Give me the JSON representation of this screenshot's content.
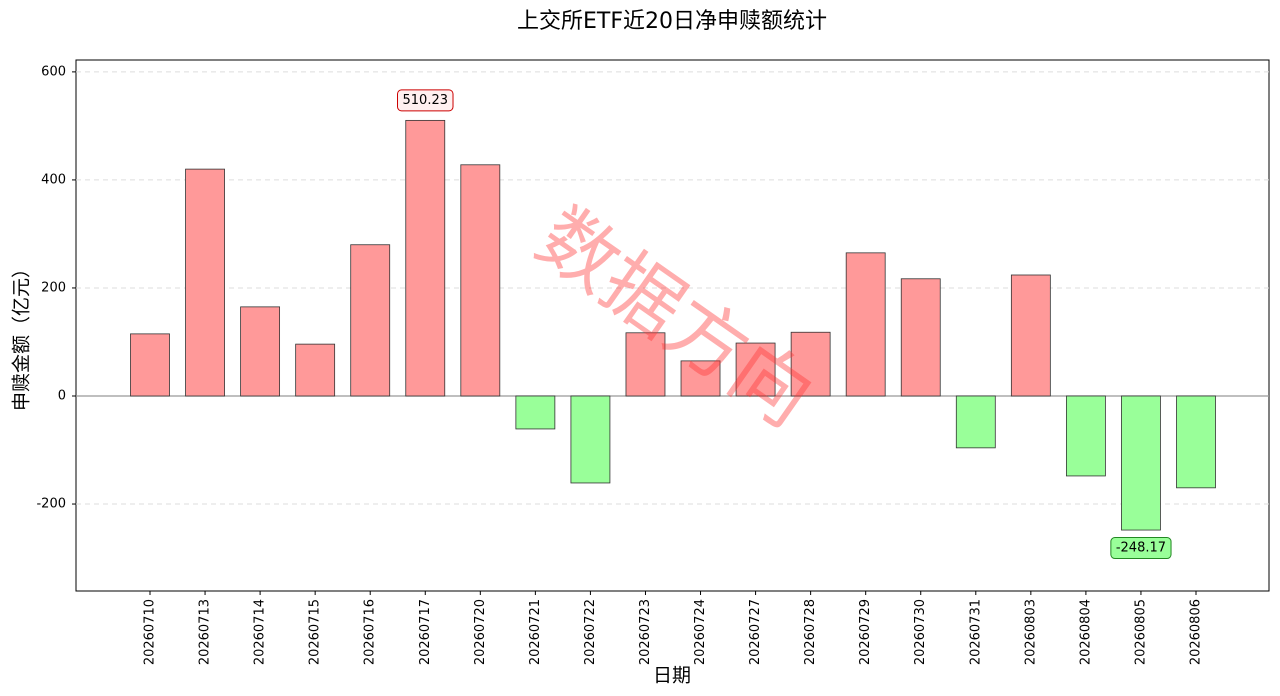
{
  "chart_data": {
    "type": "bar",
    "title": "上交所ETF近20日净申赎额统计",
    "xlabel": "日期",
    "ylabel": "申赎金额（亿元）",
    "watermark": "数据方向",
    "categories": [
      "20260710",
      "20260713",
      "20260714",
      "20260715",
      "20260716",
      "20260717",
      "20260720",
      "20260721",
      "20260722",
      "20260723",
      "20260724",
      "20260727",
      "20260728",
      "20260729",
      "20260730",
      "20260731",
      "20260803",
      "20260804",
      "20260805",
      "20260806"
    ],
    "values": [
      115,
      420,
      165,
      96,
      280,
      510.23,
      428,
      -61,
      -161,
      117,
      65,
      98,
      118,
      265,
      217,
      -96,
      224,
      -148,
      -248.17,
      -170
    ],
    "value_labels": [
      null,
      null,
      null,
      null,
      null,
      "510.23",
      null,
      null,
      null,
      null,
      null,
      null,
      null,
      null,
      null,
      null,
      null,
      null,
      "-248.17",
      null
    ],
    "positive_color": "#ff9999",
    "negative_color": "#99ff99",
    "ylim": [
      -361,
      622
    ],
    "yticks": [
      -200,
      0,
      200,
      400,
      600
    ],
    "grid": true
  }
}
